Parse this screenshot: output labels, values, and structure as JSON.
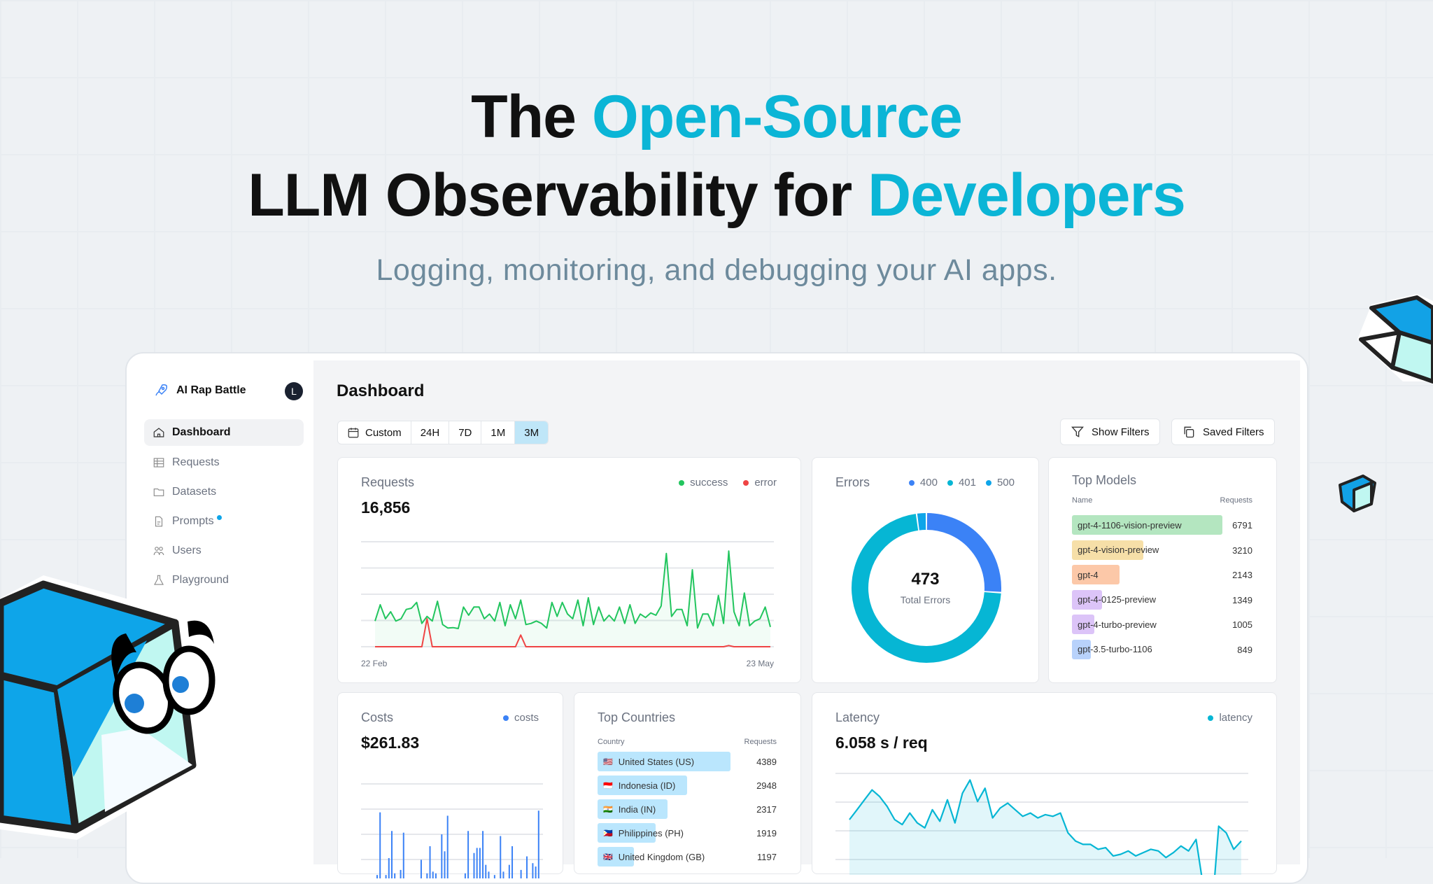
{
  "hero": {
    "line1_plain": "The ",
    "line1_accent": "Open-Source",
    "line2_plain": "LLM Observability for ",
    "line2_accent": "Developers",
    "subtitle": "Logging, monitoring, and debugging your AI apps."
  },
  "colors": {
    "accent": "#0bb5d6",
    "success": "#22c55e",
    "error": "#ef4444",
    "e400": "#3b82f6",
    "e401": "#06b6d4",
    "e500": "#0ea5e9",
    "costs": "#3b82f6",
    "latency": "#06b6d4"
  },
  "sidebar": {
    "org": "AI Rap Battle",
    "avatar": "L",
    "items": [
      {
        "label": "Dashboard",
        "icon": "home-icon"
      },
      {
        "label": "Requests",
        "icon": "table-icon"
      },
      {
        "label": "Datasets",
        "icon": "folder-icon"
      },
      {
        "label": "Prompts",
        "icon": "document-icon"
      },
      {
        "label": "Users",
        "icon": "users-icon"
      },
      {
        "label": "Playground",
        "icon": "flask-icon"
      }
    ]
  },
  "main": {
    "title": "Dashboard",
    "tabs": [
      "Custom",
      "24H",
      "7D",
      "1M",
      "3M"
    ],
    "selected_tab": "3M",
    "show_filters": "Show Filters",
    "saved_filters": "Saved Filters"
  },
  "requests": {
    "title": "Requests",
    "value": "16,856",
    "legend": [
      "success",
      "error"
    ],
    "x_start": "22 Feb",
    "x_end": "23 May"
  },
  "errors": {
    "title": "Errors",
    "legend": [
      "400",
      "401",
      "500"
    ],
    "total": "473",
    "total_label": "Total Errors"
  },
  "top_models": {
    "title": "Top Models",
    "col_name": "Name",
    "col_requests": "Requests",
    "rows": [
      {
        "name": "gpt-4-1106-vision-preview",
        "value": "6791",
        "color": "#b4e6c0"
      },
      {
        "name": "gpt-4-vision-preview",
        "value": "3210",
        "color": "#f6dfa8"
      },
      {
        "name": "gpt-4",
        "value": "2143",
        "color": "#fcc8a8"
      },
      {
        "name": "gpt-4-0125-preview",
        "value": "1349",
        "color": "#dcc4f8"
      },
      {
        "name": "gpt-4-turbo-preview",
        "value": "1005",
        "color": "#dcc4f8"
      },
      {
        "name": "gpt-3.5-turbo-1106",
        "value": "849",
        "color": "#b8d2fb"
      }
    ]
  },
  "costs": {
    "title": "Costs",
    "value": "$261.83",
    "legend": "costs"
  },
  "countries": {
    "title": "Top Countries",
    "col_country": "Country",
    "col_requests": "Requests",
    "rows": [
      {
        "name": "United States (US)",
        "value": "4389",
        "flag": "🇺🇸"
      },
      {
        "name": "Indonesia (ID)",
        "value": "2948",
        "flag": "🇮🇩"
      },
      {
        "name": "India (IN)",
        "value": "2317",
        "flag": "🇮🇳"
      },
      {
        "name": "Philippines (PH)",
        "value": "1919",
        "flag": "🇵🇭"
      },
      {
        "name": "United Kingdom (GB)",
        "value": "1197",
        "flag": "🇬🇧"
      }
    ]
  },
  "latency": {
    "title": "Latency",
    "value": "6.058 s / req",
    "legend": "latency"
  },
  "chart_data": [
    {
      "type": "line",
      "title": "Requests",
      "series": [
        {
          "name": "success",
          "values": [
            110,
            180,
            120,
            150,
            110,
            120,
            160,
            165,
            190,
            100,
            130,
            110,
            195,
            95,
            80,
            82,
            78,
            170,
            135,
            170,
            170,
            120,
            140,
            110,
            190,
            90,
            180,
            120,
            200,
            95,
            100,
            110,
            100,
            80,
            190,
            130,
            190,
            140,
            120,
            200,
            90,
            210,
            95,
            170,
            110,
            135,
            110,
            170,
            100,
            180,
            100,
            140,
            125,
            145,
            135,
            175,
            400,
            130,
            160,
            160,
            90,
            330,
            80,
            140,
            140,
            90,
            220,
            100,
            410,
            150,
            90,
            230,
            90,
            110,
            120,
            170,
            85
          ]
        },
        {
          "name": "error",
          "values": [
            0,
            0,
            0,
            0,
            0,
            0,
            0,
            0,
            0,
            0,
            120,
            0,
            0,
            0,
            0,
            0,
            0,
            0,
            0,
            0,
            0,
            0,
            0,
            0,
            0,
            0,
            0,
            0,
            50,
            0,
            0,
            0,
            0,
            0,
            0,
            0,
            0,
            0,
            0,
            0,
            0,
            0,
            0,
            0,
            0,
            0,
            0,
            0,
            0,
            0,
            0,
            0,
            0,
            0,
            0,
            0,
            0,
            0,
            0,
            0,
            0,
            0,
            0,
            0,
            0,
            0,
            0,
            0,
            5,
            0,
            0,
            0,
            0,
            0,
            0,
            0,
            0
          ]
        }
      ],
      "ylim": [
        0,
        450
      ],
      "x_labels": [
        "22 Feb",
        "23 May"
      ],
      "grid": true
    },
    {
      "type": "pie",
      "title": "Errors",
      "categories": [
        "400",
        "401",
        "500"
      ],
      "values": [
        123,
        340,
        10
      ],
      "total": 473
    },
    {
      "type": "bar",
      "title": "Costs",
      "values": [
        0.2,
        3.9,
        0,
        0.2,
        1.2,
        2.8,
        0.3,
        0,
        0.5,
        2.7,
        0,
        0,
        0,
        0,
        0,
        1.1,
        0,
        0.3,
        1.9,
        0.4,
        0.3,
        0,
        2.6,
        1.6,
        3.7,
        0,
        0,
        0,
        0,
        0,
        0.3,
        2.8,
        0,
        1.5,
        1.8,
        1.8,
        2.8,
        0.8,
        0.4,
        0,
        0.2,
        0,
        2.5,
        0.4,
        0,
        0.8,
        1.9,
        0,
        0,
        0.5,
        0,
        1.3,
        0,
        0.9,
        0.7,
        4.0
      ],
      "ylim": [
        0,
        5
      ],
      "grid": true
    },
    {
      "type": "area",
      "title": "Latency",
      "values": [
        7.2,
        7.8,
        8.4,
        9.0,
        8.6,
        8.0,
        7.2,
        6.9,
        7.6,
        7.0,
        6.7,
        7.8,
        7.1,
        8.4,
        7.0,
        8.8,
        9.6,
        8.3,
        9.1,
        7.3,
        7.9,
        8.2,
        7.8,
        7.4,
        7.6,
        7.3,
        7.5,
        7.4,
        7.6,
        6.4,
        5.9,
        5.7,
        5.7,
        5.4,
        5.5,
        5.0,
        5.1,
        5.3,
        5.0,
        5.2,
        5.4,
        5.3,
        4.9,
        5.2,
        5.6,
        5.3,
        6.0,
        3.0,
        1.0,
        6.8,
        6.4,
        5.4,
        5.9
      ],
      "ylim": [
        3,
        10
      ],
      "grid": true
    }
  ]
}
